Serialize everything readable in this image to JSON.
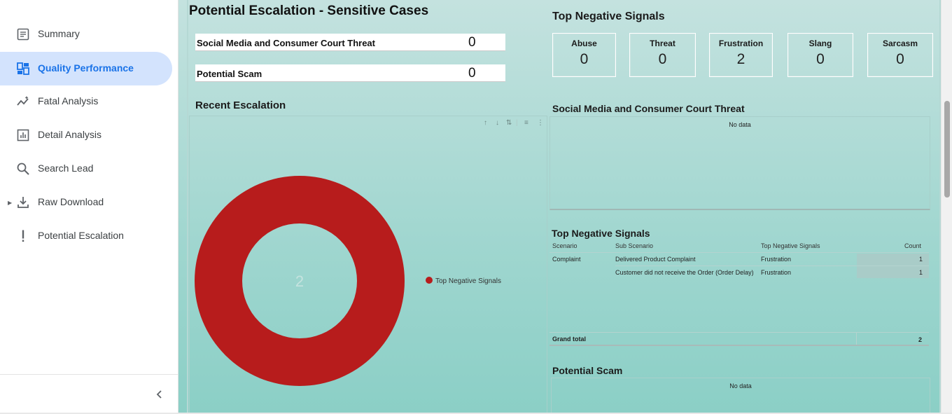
{
  "sidebar": {
    "items": [
      {
        "label": "Summary",
        "icon": "summary-icon"
      },
      {
        "label": "Quality Performance",
        "icon": "dashboard-icon"
      },
      {
        "label": "Fatal Analysis",
        "icon": "trend-icon"
      },
      {
        "label": "Detail Analysis",
        "icon": "bar-chart-icon"
      },
      {
        "label": "Search Lead",
        "icon": "search-icon"
      },
      {
        "label": "Raw Download",
        "icon": "download-icon"
      },
      {
        "label": "Potential Escalation",
        "icon": "exclamation-icon"
      }
    ],
    "active_index": 1
  },
  "report": {
    "title": "Potential Escalation - Sensitive Cases",
    "kpis": [
      {
        "label": "Social Media and Consumer Court Threat",
        "value": "0"
      },
      {
        "label": "Potential Scam",
        "value": "0"
      }
    ],
    "signals_title": "Top Negative Signals",
    "signals": [
      {
        "label": "Abuse",
        "value": "0"
      },
      {
        "label": "Threat",
        "value": "0"
      },
      {
        "label": "Frustration",
        "value": "2"
      },
      {
        "label": "Slang",
        "value": "0"
      },
      {
        "label": "Sarcasm",
        "value": "0"
      }
    ],
    "recent_title": "Recent Escalation",
    "social_title": "Social Media and Consumer Court Threat",
    "social_nodata": "No data",
    "neg_table_title": "Top Negative Signals",
    "neg_table": {
      "headers": [
        "Scenario",
        "Sub Scenario",
        "Top Negative Signals",
        "Count"
      ],
      "rows": [
        [
          "Complaint",
          "Delivered Product Complaint",
          "Frustration",
          "1"
        ],
        [
          "",
          "Customer did not receive the Order (Order Delay)",
          "Frustration",
          "1"
        ]
      ],
      "grand_total_label": "Grand total",
      "grand_total_value": "2"
    },
    "scam_title": "Potential Scam",
    "scam_nodata": "No data"
  },
  "chart_data": {
    "type": "pie",
    "donut": true,
    "categories": [
      "Top Negative Signals"
    ],
    "values": [
      2
    ],
    "center_label": "2",
    "legend_position": "right",
    "colors": [
      "#b71c1c"
    ]
  }
}
